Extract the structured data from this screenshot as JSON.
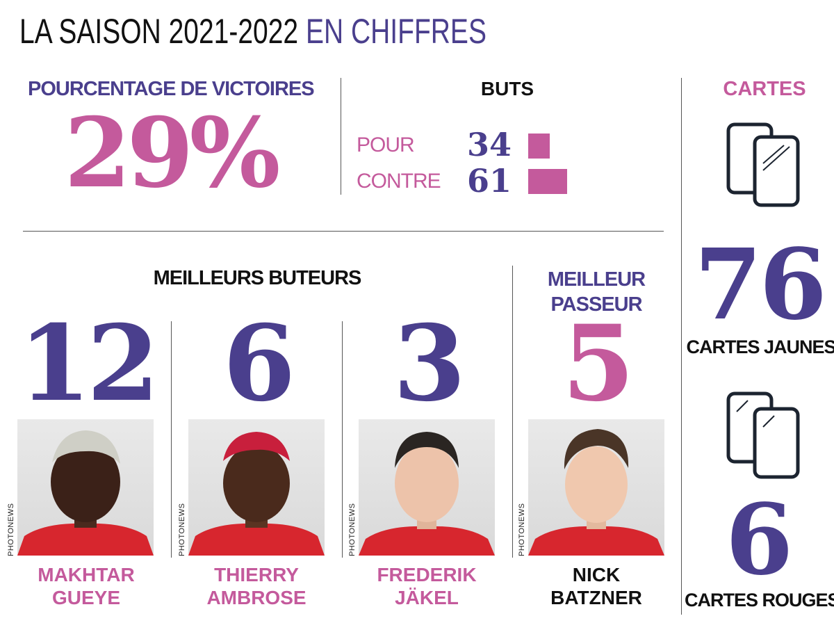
{
  "header": {
    "title_part1": "LA SAISON 2021-2022",
    "title_part2": "EN CHIFFRES"
  },
  "victoires": {
    "label": "POURCENTAGE DE VICTOIRES",
    "value": "29%"
  },
  "buts": {
    "label": "BUTS",
    "rows": [
      {
        "label": "POUR",
        "value": "34",
        "num": 34
      },
      {
        "label": "CONTRE",
        "value": "61",
        "num": 61
      }
    ]
  },
  "cartes": {
    "label": "CARTES",
    "jaunes": {
      "value": "76",
      "label": "CARTES JAUNES"
    },
    "rouges": {
      "value": "6",
      "label": "CARTES ROUGES"
    }
  },
  "buteurs": {
    "label": "MEILLEURS BUTEURS",
    "players": [
      {
        "value": "12",
        "first": "MAKHTAR",
        "last": "GUEYE",
        "credit": "PHOTONEWS"
      },
      {
        "value": "6",
        "first": "THIERRY",
        "last": "AMBROSE",
        "credit": "PHOTONEWS"
      },
      {
        "value": "3",
        "first": "FREDERIK",
        "last": "JÄKEL",
        "credit": "PHOTONEWS"
      }
    ]
  },
  "passeur": {
    "label_line1": "MEILLEUR",
    "label_line2": "PASSEUR",
    "value": "5",
    "first": "NICK",
    "last": "BATZNER",
    "credit": "PHOTONEWS"
  },
  "colors": {
    "purple": "#4a3f8d",
    "pink": "#c45a9c",
    "jersey": "#d7262e"
  }
}
